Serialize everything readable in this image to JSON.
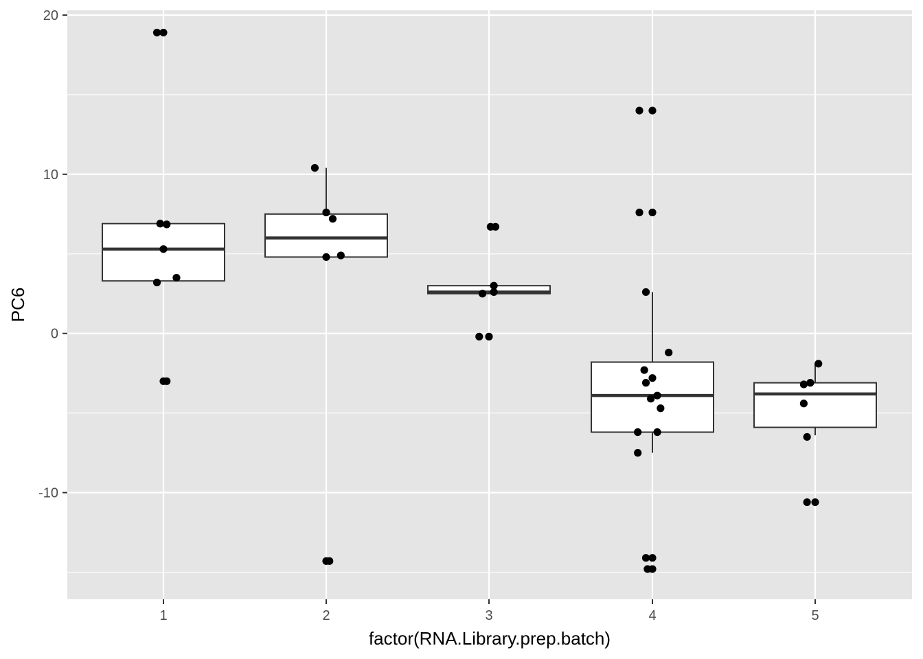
{
  "chart_data": {
    "type": "boxplot",
    "xlabel": "factor(RNA.Library.prep.batch)",
    "ylabel": "PC6",
    "categories": [
      "1",
      "2",
      "3",
      "4",
      "5"
    ],
    "ylim": [
      -16.7,
      20.3
    ],
    "yticks": [
      -10,
      0,
      10,
      20
    ],
    "ytick_labels": [
      "-10",
      "0",
      "10",
      "20"
    ],
    "grid": true,
    "colors": {
      "panel": "#e5e5e5",
      "grid": "#ffffff",
      "box_fill": "#ffffff",
      "box_line": "#333333",
      "point": "#000000",
      "tick_text": "#4d4d4d",
      "tick_mark": "#333333"
    },
    "boxes": [
      {
        "category": "1",
        "lower_whisker": 3.3,
        "q1": 3.3,
        "median": 5.3,
        "q3": 6.9,
        "upper_whisker": 6.9
      },
      {
        "category": "2",
        "lower_whisker": 4.8,
        "q1": 4.8,
        "median": 6.0,
        "q3": 7.5,
        "upper_whisker": 10.4
      },
      {
        "category": "3",
        "lower_whisker": 2.5,
        "q1": 2.5,
        "median": 2.6,
        "q3": 3.0,
        "upper_whisker": 3.0
      },
      {
        "category": "4",
        "lower_whisker": -7.5,
        "q1": -6.2,
        "median": -3.9,
        "q3": -1.8,
        "upper_whisker": 2.6
      },
      {
        "category": "5",
        "lower_whisker": -6.4,
        "q1": -5.9,
        "median": -3.8,
        "q3": -3.1,
        "upper_whisker": -1.9
      }
    ],
    "points": [
      {
        "category": "1",
        "jitter": -0.04,
        "y": 18.9
      },
      {
        "category": "1",
        "jitter": 0.0,
        "y": 18.9
      },
      {
        "category": "1",
        "jitter": -0.02,
        "y": 6.9
      },
      {
        "category": "1",
        "jitter": 0.02,
        "y": 6.85
      },
      {
        "category": "1",
        "jitter": 0.0,
        "y": 5.3
      },
      {
        "category": "1",
        "jitter": 0.08,
        "y": 3.5
      },
      {
        "category": "1",
        "jitter": -0.04,
        "y": 3.2
      },
      {
        "category": "1",
        "jitter": 0.0,
        "y": -3.0
      },
      {
        "category": "1",
        "jitter": 0.02,
        "y": -3.0
      },
      {
        "category": "2",
        "jitter": -0.07,
        "y": 10.4
      },
      {
        "category": "2",
        "jitter": 0.0,
        "y": 7.6
      },
      {
        "category": "2",
        "jitter": 0.04,
        "y": 7.2
      },
      {
        "category": "2",
        "jitter": 0.09,
        "y": 4.9
      },
      {
        "category": "2",
        "jitter": 0.0,
        "y": 4.8
      },
      {
        "category": "2",
        "jitter": 0.0,
        "y": -14.3
      },
      {
        "category": "2",
        "jitter": 0.02,
        "y": -14.3
      },
      {
        "category": "3",
        "jitter": 0.01,
        "y": 6.7
      },
      {
        "category": "3",
        "jitter": 0.04,
        "y": 6.7
      },
      {
        "category": "3",
        "jitter": 0.03,
        "y": 3.0
      },
      {
        "category": "3",
        "jitter": 0.03,
        "y": 2.6
      },
      {
        "category": "3",
        "jitter": -0.04,
        "y": 2.5
      },
      {
        "category": "3",
        "jitter": -0.06,
        "y": -0.2
      },
      {
        "category": "3",
        "jitter": 0.0,
        "y": -0.2
      },
      {
        "category": "4",
        "jitter": -0.08,
        "y": 14.0
      },
      {
        "category": "4",
        "jitter": 0.0,
        "y": 14.0
      },
      {
        "category": "4",
        "jitter": -0.08,
        "y": 7.6
      },
      {
        "category": "4",
        "jitter": 0.0,
        "y": 7.6
      },
      {
        "category": "4",
        "jitter": -0.04,
        "y": 2.6
      },
      {
        "category": "4",
        "jitter": 0.1,
        "y": -1.2
      },
      {
        "category": "4",
        "jitter": -0.05,
        "y": -2.3
      },
      {
        "category": "4",
        "jitter": 0.0,
        "y": -2.8
      },
      {
        "category": "4",
        "jitter": -0.04,
        "y": -3.1
      },
      {
        "category": "4",
        "jitter": 0.03,
        "y": -3.9
      },
      {
        "category": "4",
        "jitter": -0.01,
        "y": -4.1
      },
      {
        "category": "4",
        "jitter": 0.05,
        "y": -4.7
      },
      {
        "category": "4",
        "jitter": -0.09,
        "y": -6.2
      },
      {
        "category": "4",
        "jitter": 0.03,
        "y": -6.2
      },
      {
        "category": "4",
        "jitter": -0.09,
        "y": -7.5
      },
      {
        "category": "4",
        "jitter": -0.04,
        "y": -14.1
      },
      {
        "category": "4",
        "jitter": 0.0,
        "y": -14.1
      },
      {
        "category": "4",
        "jitter": -0.03,
        "y": -14.8
      },
      {
        "category": "4",
        "jitter": 0.0,
        "y": -14.8
      },
      {
        "category": "5",
        "jitter": 0.02,
        "y": -1.9
      },
      {
        "category": "5",
        "jitter": -0.03,
        "y": -3.1
      },
      {
        "category": "5",
        "jitter": -0.07,
        "y": -3.2
      },
      {
        "category": "5",
        "jitter": -0.07,
        "y": -4.4
      },
      {
        "category": "5",
        "jitter": -0.05,
        "y": -6.5
      },
      {
        "category": "5",
        "jitter": -0.05,
        "y": -10.6
      },
      {
        "category": "5",
        "jitter": 0.0,
        "y": -10.6
      }
    ]
  }
}
